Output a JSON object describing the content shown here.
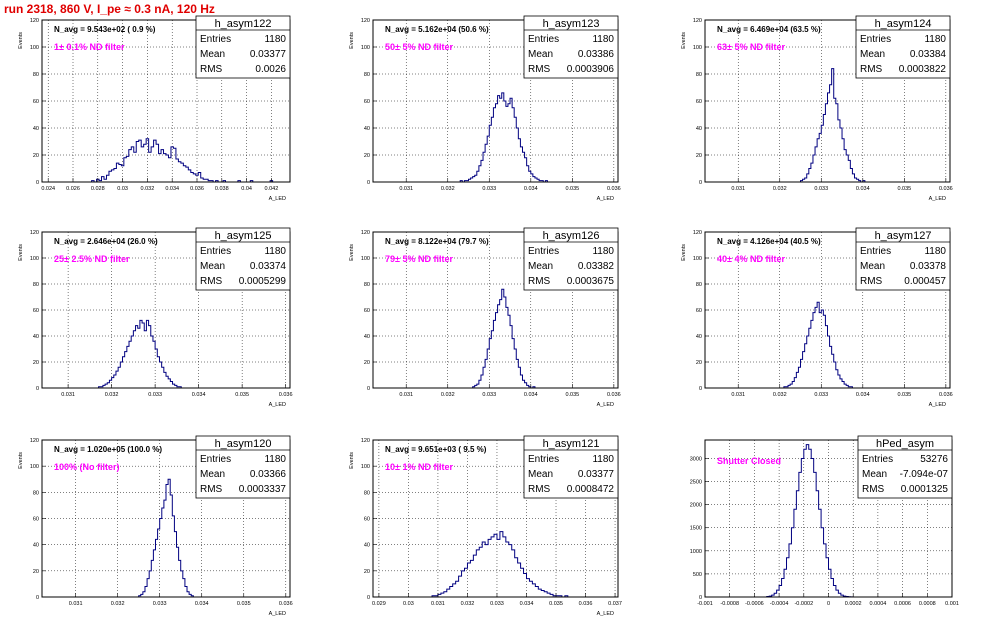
{
  "run_title": "run 2318,   860 V, I_pe ≈ 0.3 nA, 120 Hz",
  "colors": {
    "hist": "#000080",
    "filter_label": "#ff00ff",
    "title": "#e00000"
  },
  "chart_data": [
    {
      "type": "bar",
      "hist_name": "h_asym122",
      "nav": "N_avg = 9.543e+02 ( 0.9 %)",
      "filter": "1± 0.1% ND filter",
      "stats": {
        "entries": "1180",
        "mean": "0.03377",
        "rms": "0.0026"
      },
      "ylabel": "Events",
      "xlabel": "A_LED",
      "xlim": [
        0.0235,
        0.0435
      ],
      "ylim": [
        0,
        120
      ],
      "xticks": [
        {
          "v": 0.024,
          "label": "0.024"
        },
        {
          "v": 0.026,
          "label": "0.026"
        },
        {
          "v": 0.028,
          "label": "0.028"
        },
        {
          "v": 0.03,
          "label": "0.03"
        },
        {
          "v": 0.032,
          "label": "0.032"
        },
        {
          "v": 0.034,
          "label": "0.034"
        },
        {
          "v": 0.036,
          "label": "0.036"
        },
        {
          "v": 0.038,
          "label": "0.038"
        },
        {
          "v": 0.04,
          "label": "0.04"
        },
        {
          "v": 0.042,
          "label": "0.042"
        }
      ],
      "yticks": [
        0,
        20,
        40,
        60,
        80,
        100,
        120
      ],
      "bins": {
        "x0": 0.0275,
        "width": 0.0002,
        "counts": [
          1,
          0,
          2,
          1,
          4,
          2,
          5,
          8,
          9,
          10,
          14,
          13,
          12,
          18,
          19,
          24,
          26,
          22,
          30,
          31,
          26,
          28,
          32,
          22,
          26,
          31,
          28,
          21,
          24,
          21,
          20,
          18,
          26,
          25,
          17,
          15,
          14,
          12,
          11,
          9,
          7,
          6,
          5,
          7,
          3,
          2,
          2,
          1,
          1,
          0,
          1,
          0,
          0,
          1,
          0,
          0,
          0,
          0,
          0,
          1,
          0,
          0,
          0,
          0,
          1,
          0,
          0,
          0,
          0,
          0,
          0,
          0,
          1,
          0,
          0
        ]
      }
    },
    {
      "type": "bar",
      "hist_name": "h_asym123",
      "nav": "N_avg = 5.162e+04 (50.6 %)",
      "filter": "50± 5% ND filter",
      "stats": {
        "entries": "1180",
        "mean": "0.03386",
        "rms": "0.0003906"
      },
      "ylabel": "Events",
      "xlabel": "A_LED",
      "xlim": [
        0.0302,
        0.0361
      ],
      "ylim": [
        0,
        120
      ],
      "xticks": [
        {
          "v": 0.031,
          "label": "0.031"
        },
        {
          "v": 0.032,
          "label": "0.032"
        },
        {
          "v": 0.033,
          "label": "0.033"
        },
        {
          "v": 0.034,
          "label": "0.034"
        },
        {
          "v": 0.035,
          "label": "0.035"
        },
        {
          "v": 0.036,
          "label": "0.036"
        }
      ],
      "yticks": [
        0,
        20,
        40,
        60,
        80,
        100,
        120
      ],
      "bins": {
        "x0": 0.0323,
        "width": 5e-05,
        "counts": [
          1,
          0,
          1,
          1,
          2,
          3,
          4,
          5,
          8,
          12,
          16,
          22,
          28,
          34,
          42,
          48,
          55,
          58,
          64,
          62,
          66,
          60,
          56,
          58,
          62,
          55,
          48,
          40,
          32,
          26,
          22,
          18,
          12,
          8,
          6,
          4,
          3,
          2,
          1,
          1,
          0,
          1
        ]
      }
    },
    {
      "type": "bar",
      "hist_name": "h_asym124",
      "nav": "N_avg = 6.469e+04 (63.5 %)",
      "filter": "63± 5% ND filter",
      "stats": {
        "entries": "1180",
        "mean": "0.03384",
        "rms": "0.0003822"
      },
      "ylabel": "Events",
      "xlabel": "A_LED",
      "xlim": [
        0.0302,
        0.0361
      ],
      "ylim": [
        0,
        120
      ],
      "xticks": [
        {
          "v": 0.031,
          "label": "0.031"
        },
        {
          "v": 0.032,
          "label": "0.032"
        },
        {
          "v": 0.033,
          "label": "0.033"
        },
        {
          "v": 0.034,
          "label": "0.034"
        },
        {
          "v": 0.035,
          "label": "0.035"
        },
        {
          "v": 0.036,
          "label": "0.036"
        }
      ],
      "yticks": [
        0,
        20,
        40,
        60,
        80,
        100,
        120
      ],
      "bins": {
        "x0": 0.0325,
        "width": 5e-05,
        "counts": [
          1,
          2,
          3,
          6,
          10,
          14,
          20,
          26,
          32,
          36,
          42,
          50,
          58,
          66,
          72,
          84,
          62,
          58,
          46,
          40,
          32,
          24,
          20,
          16,
          10,
          6,
          3,
          2,
          1,
          0,
          1
        ]
      }
    },
    {
      "type": "bar",
      "hist_name": "h_asym125",
      "nav": "N_avg = 2.646e+04 (26.0 %)",
      "filter": "25± 2.5% ND filter",
      "stats": {
        "entries": "1180",
        "mean": "0.03374",
        "rms": "0.0005299"
      },
      "ylabel": "Events",
      "xlabel": "A_LED",
      "xlim": [
        0.0304,
        0.0361
      ],
      "ylim": [
        0,
        120
      ],
      "xticks": [
        {
          "v": 0.031,
          "label": "0.031"
        },
        {
          "v": 0.032,
          "label": "0.032"
        },
        {
          "v": 0.033,
          "label": "0.033"
        },
        {
          "v": 0.034,
          "label": "0.034"
        },
        {
          "v": 0.035,
          "label": "0.035"
        },
        {
          "v": 0.036,
          "label": "0.036"
        }
      ],
      "yticks": [
        0,
        20,
        40,
        60,
        80,
        100,
        120
      ],
      "bins": {
        "x0": 0.0317,
        "width": 5e-05,
        "counts": [
          1,
          1,
          2,
          3,
          4,
          6,
          8,
          10,
          13,
          16,
          20,
          24,
          28,
          32,
          36,
          40,
          44,
          48,
          46,
          52,
          50,
          44,
          52,
          48,
          40,
          36,
          30,
          24,
          20,
          16,
          12,
          9,
          7,
          5,
          3,
          2,
          1,
          1
        ]
      }
    },
    {
      "type": "bar",
      "hist_name": "h_asym126",
      "nav": "N_avg = 8.122e+04 (79.7 %)",
      "filter": "79± 5% ND filter",
      "stats": {
        "entries": "1180",
        "mean": "0.03382",
        "rms": "0.0003675"
      },
      "ylabel": "Events",
      "xlabel": "A_LED",
      "xlim": [
        0.0302,
        0.0361
      ],
      "ylim": [
        0,
        120
      ],
      "xticks": [
        {
          "v": 0.031,
          "label": "0.031"
        },
        {
          "v": 0.032,
          "label": "0.032"
        },
        {
          "v": 0.033,
          "label": "0.033"
        },
        {
          "v": 0.034,
          "label": "0.034"
        },
        {
          "v": 0.035,
          "label": "0.035"
        },
        {
          "v": 0.036,
          "label": "0.036"
        }
      ],
      "yticks": [
        0,
        20,
        40,
        60,
        80,
        100,
        120
      ],
      "bins": {
        "x0": 0.0326,
        "width": 5e-05,
        "counts": [
          1,
          2,
          3,
          6,
          10,
          16,
          22,
          30,
          38,
          44,
          52,
          58,
          64,
          68,
          76,
          70,
          62,
          56,
          48,
          38,
          30,
          22,
          16,
          10,
          6,
          4,
          2,
          1,
          0,
          1
        ]
      }
    },
    {
      "type": "bar",
      "hist_name": "h_asym127",
      "nav": "N_avg = 4.126e+04 (40.5 %)",
      "filter": "40± 4% ND filter",
      "stats": {
        "entries": "1180",
        "mean": "0.03378",
        "rms": "0.000457"
      },
      "ylabel": "Events",
      "xlabel": "A_LED",
      "xlim": [
        0.0302,
        0.0361
      ],
      "ylim": [
        0,
        120
      ],
      "xticks": [
        {
          "v": 0.031,
          "label": "0.031"
        },
        {
          "v": 0.032,
          "label": "0.032"
        },
        {
          "v": 0.033,
          "label": "0.033"
        },
        {
          "v": 0.034,
          "label": "0.034"
        },
        {
          "v": 0.035,
          "label": "0.035"
        },
        {
          "v": 0.036,
          "label": "0.036"
        }
      ],
      "yticks": [
        0,
        20,
        40,
        60,
        80,
        100,
        120
      ],
      "bins": {
        "x0": 0.0321,
        "width": 5e-05,
        "counts": [
          1,
          1,
          2,
          3,
          5,
          8,
          12,
          16,
          22,
          28,
          34,
          40,
          46,
          52,
          58,
          62,
          66,
          58,
          60,
          56,
          48,
          40,
          32,
          26,
          20,
          14,
          10,
          7,
          5,
          3,
          2,
          1,
          1
        ]
      }
    },
    {
      "type": "bar",
      "hist_name": "h_asym120",
      "nav": "N_avg = 1.020e+05 (100.0 %)",
      "filter": "100% (No filter)",
      "stats": {
        "entries": "1180",
        "mean": "0.03366",
        "rms": "0.0003337"
      },
      "ylabel": "Events",
      "xlabel": "A_LED",
      "xlim": [
        0.0302,
        0.0361
      ],
      "ylim": [
        0,
        120
      ],
      "xticks": [
        {
          "v": 0.031,
          "label": "0.031"
        },
        {
          "v": 0.032,
          "label": "0.032"
        },
        {
          "v": 0.033,
          "label": "0.033"
        },
        {
          "v": 0.034,
          "label": "0.034"
        },
        {
          "v": 0.035,
          "label": "0.035"
        },
        {
          "v": 0.036,
          "label": "0.036"
        }
      ],
      "yticks": [
        0,
        20,
        40,
        60,
        80,
        100,
        120
      ],
      "bins": {
        "x0": 0.0325,
        "width": 5e-05,
        "counts": [
          1,
          2,
          4,
          8,
          14,
          20,
          28,
          36,
          44,
          52,
          60,
          68,
          74,
          86,
          90,
          78,
          62,
          50,
          38,
          28,
          20,
          14,
          8,
          4,
          2,
          1
        ]
      }
    },
    {
      "type": "bar",
      "hist_name": "h_asym121",
      "nav": "N_avg = 9.651e+03 ( 9.5 %)",
      "filter": "10± 1% ND filter",
      "stats": {
        "entries": "1180",
        "mean": "0.03377",
        "rms": "0.0008472"
      },
      "ylabel": "Events",
      "xlabel": "A_LED",
      "xlim": [
        0.0288,
        0.0371
      ],
      "ylim": [
        0,
        120
      ],
      "xticks": [
        {
          "v": 0.029,
          "label": "0.029"
        },
        {
          "v": 0.03,
          "label": "0.03"
        },
        {
          "v": 0.031,
          "label": "0.031"
        },
        {
          "v": 0.032,
          "label": "0.032"
        },
        {
          "v": 0.033,
          "label": "0.033"
        },
        {
          "v": 0.034,
          "label": "0.034"
        },
        {
          "v": 0.035,
          "label": "0.035"
        },
        {
          "v": 0.036,
          "label": "0.036"
        },
        {
          "v": 0.037,
          "label": "0.037"
        }
      ],
      "yticks": [
        0,
        20,
        40,
        60,
        80,
        100,
        120
      ],
      "bins": {
        "x0": 0.0308,
        "width": 0.0001,
        "counts": [
          1,
          1,
          2,
          3,
          4,
          6,
          8,
          10,
          12,
          16,
          20,
          22,
          26,
          28,
          32,
          36,
          38,
          42,
          40,
          44,
          46,
          48,
          44,
          50,
          46,
          42,
          40,
          36,
          30,
          26,
          22,
          18,
          14,
          12,
          10,
          8,
          6,
          5,
          4,
          3,
          2,
          1,
          1,
          1,
          0,
          1
        ]
      }
    },
    {
      "type": "bar",
      "hist_name": "hPed_asym",
      "nav": "",
      "filter": "Shutter Closed",
      "stats": {
        "entries": "53276",
        "mean": "-7.094e-07",
        "rms": "0.0001325"
      },
      "ylabel": "",
      "xlabel": "",
      "xlim": [
        -0.001,
        0.001
      ],
      "ylim": [
        0,
        3400
      ],
      "xticks": [
        {
          "v": -0.001,
          "label": "-0.001"
        },
        {
          "v": -0.0008,
          "label": "-0.0008"
        },
        {
          "v": -0.0006,
          "label": "-0.0006"
        },
        {
          "v": -0.0004,
          "label": "-0.0004"
        },
        {
          "v": -0.0002,
          "label": "-0.0002"
        },
        {
          "v": 0,
          "label": "0"
        },
        {
          "v": 0.0002,
          "label": "0.0002"
        },
        {
          "v": 0.0004,
          "label": "0.0004"
        },
        {
          "v": 0.0006,
          "label": "0.0006"
        },
        {
          "v": 0.0008,
          "label": "0.0008"
        },
        {
          "v": 0.001,
          "label": "0.001"
        }
      ],
      "yticks": [
        0,
        500,
        1000,
        1500,
        2000,
        2500,
        3000
      ],
      "bins": {
        "x0": -0.0005,
        "width": 2e-05,
        "counts": [
          10,
          20,
          40,
          80,
          150,
          250,
          400,
          600,
          850,
          1150,
          1500,
          1900,
          2300,
          2700,
          3000,
          3200,
          3300,
          3200,
          3000,
          2700,
          2300,
          1900,
          1500,
          1150,
          850,
          600,
          400,
          250,
          150,
          80,
          40,
          20,
          10,
          5,
          2,
          1
        ]
      }
    }
  ]
}
